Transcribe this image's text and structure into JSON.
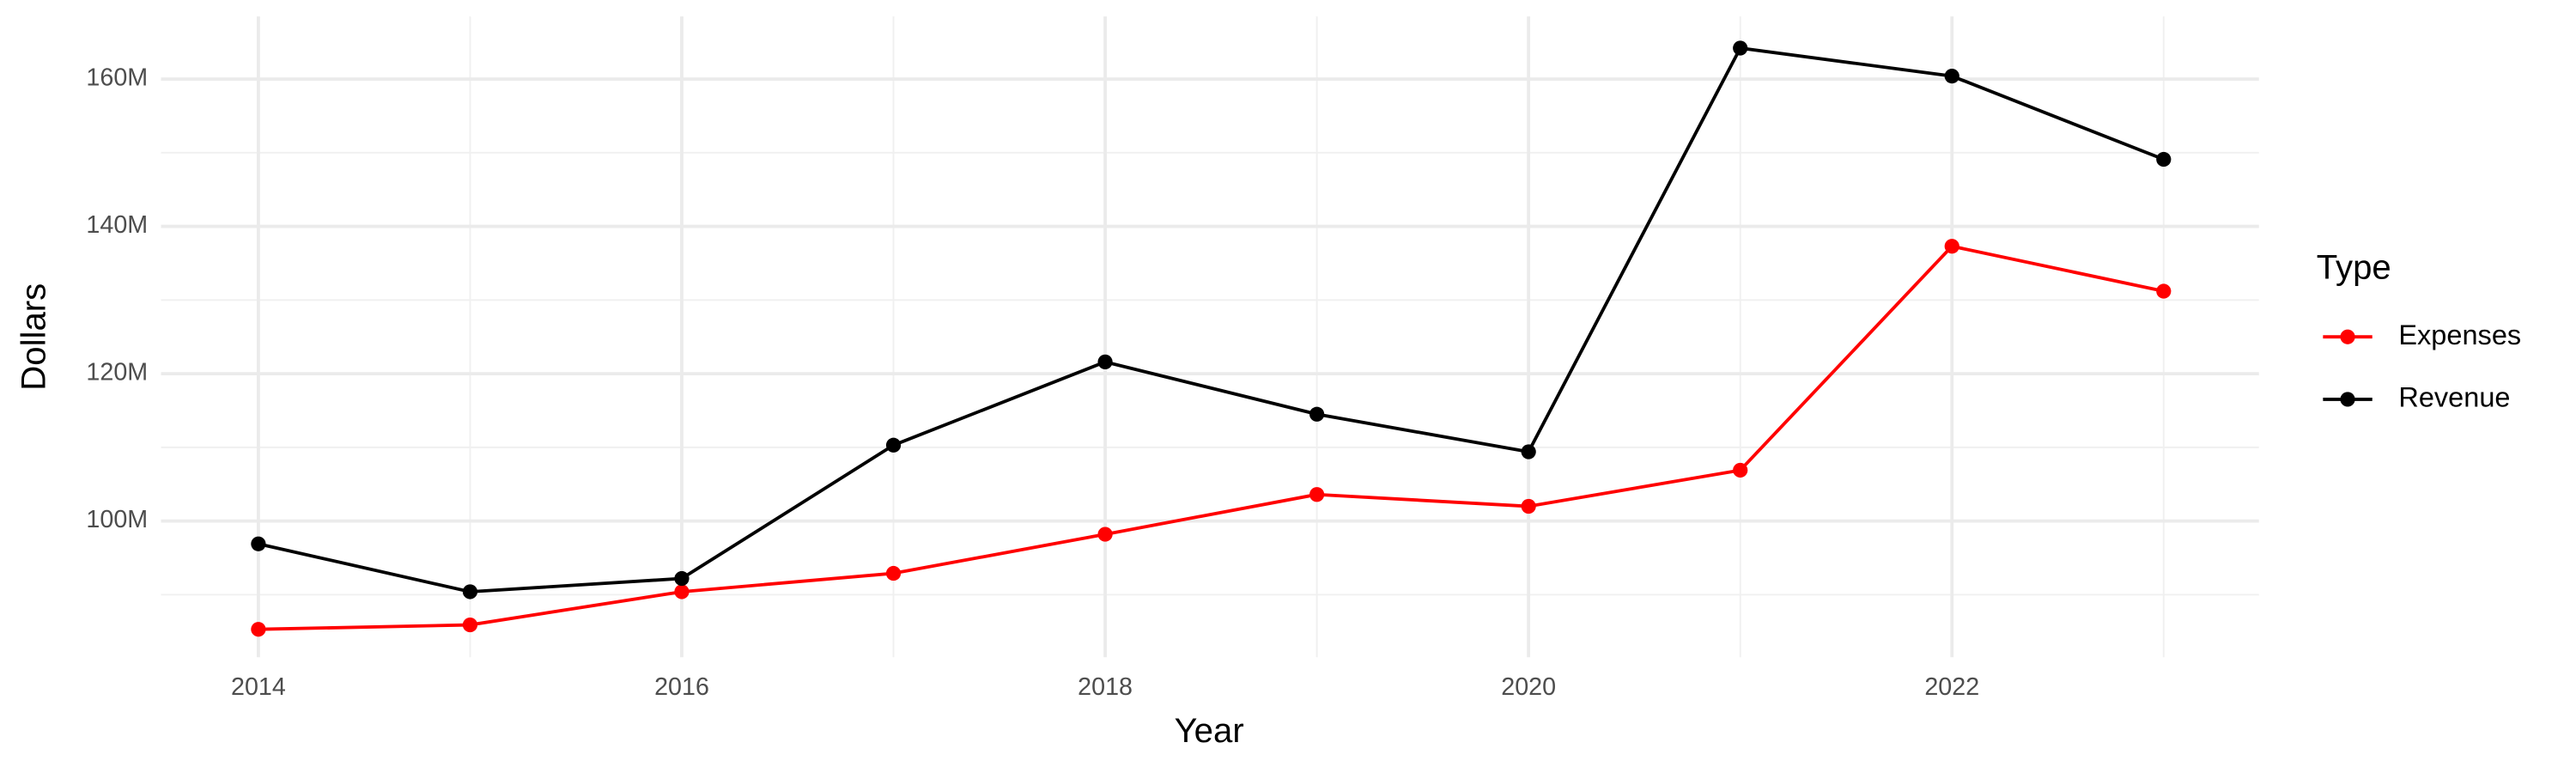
{
  "chart_data": {
    "type": "line",
    "x_label": "Year",
    "y_label": "Dollars",
    "x": [
      2014,
      2015,
      2016,
      2017,
      2018,
      2019,
      2020,
      2021,
      2022,
      2023
    ],
    "series": [
      {
        "name": "Expenses",
        "color": "#ff0000",
        "values": [
          85300000,
          85900000,
          90400000,
          92900000,
          98200000,
          103600000,
          102000000,
          106900000,
          137300000,
          131200000
        ]
      },
      {
        "name": "Revenue",
        "color": "#000000",
        "values": [
          96900000,
          90400000,
          92200000,
          110300000,
          121600000,
          114500000,
          109400000,
          164200000,
          160400000,
          149100000
        ]
      }
    ],
    "xlim": [
      2013.54,
      2023.45
    ],
    "xticks": [
      2014,
      2016,
      2018,
      2020,
      2022
    ],
    "minor_xticks": [
      2015,
      2017,
      2019,
      2021,
      2023
    ],
    "ylim": [
      81500000,
      168500000
    ],
    "yticks": [
      {
        "value": 100000000,
        "label": "100M"
      },
      {
        "value": 120000000,
        "label": "120M"
      },
      {
        "value": 140000000,
        "label": "140M"
      },
      {
        "value": 160000000,
        "label": "160M"
      }
    ],
    "minor_yticks": [
      90000000,
      110000000,
      130000000,
      150000000
    ],
    "grid": true,
    "legend_title": "Type",
    "legend_position": "right"
  }
}
